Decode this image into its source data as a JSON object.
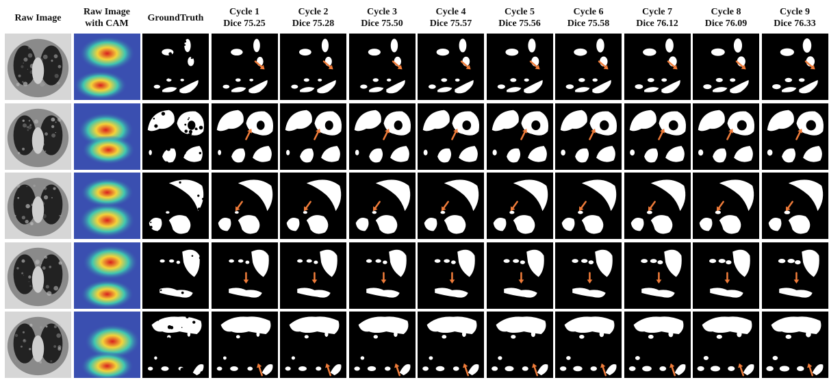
{
  "figure": {
    "columns": [
      {
        "id": "raw",
        "line1": "Raw Image",
        "line2": ""
      },
      {
        "id": "cam",
        "line1": "Raw Image",
        "line2": "with CAM"
      },
      {
        "id": "gt",
        "line1": "GroundTruth",
        "line2": ""
      },
      {
        "id": "c1",
        "line1": "Cycle 1",
        "line2": "Dice 75.25",
        "dice": 75.25
      },
      {
        "id": "c2",
        "line1": "Cycle 2",
        "line2": "Dice 75.28",
        "dice": 75.28
      },
      {
        "id": "c3",
        "line1": "Cycle 3",
        "line2": "Dice 75.50",
        "dice": 75.5
      },
      {
        "id": "c4",
        "line1": "Cycle 4",
        "line2": "Dice 75.57",
        "dice": 75.57
      },
      {
        "id": "c5",
        "line1": "Cycle 5",
        "line2": "Dice 75.56",
        "dice": 75.56
      },
      {
        "id": "c6",
        "line1": "Cycle 6",
        "line2": "Dice 75.58",
        "dice": 75.58
      },
      {
        "id": "c7",
        "line1": "Cycle 7",
        "line2": "Dice 76.12",
        "dice": 76.12
      },
      {
        "id": "c8",
        "line1": "Cycle 8",
        "line2": "Dice 76.09",
        "dice": 76.09
      },
      {
        "id": "c9",
        "line1": "Cycle 9",
        "line2": "Dice 76.33",
        "dice": 76.33
      }
    ],
    "rows": 5,
    "colors": {
      "mask_background": "#000000",
      "mask_foreground": "#ffffff",
      "arrow": "#f07c3a",
      "ct_background": "#d6d6d6",
      "ct_body": "#8a8a8a",
      "ct_lung": "#222222",
      "cam_base": "#3a4fb0"
    }
  }
}
